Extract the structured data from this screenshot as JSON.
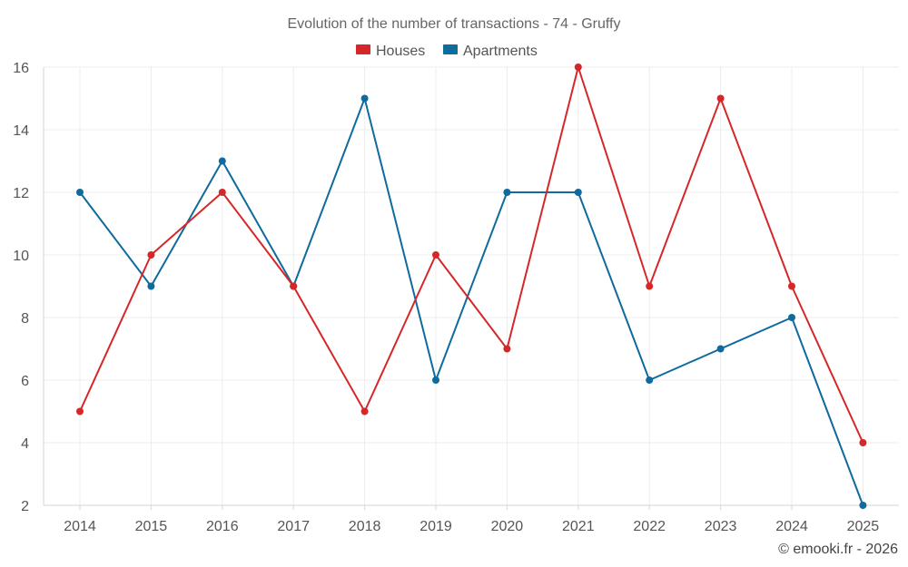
{
  "chart_data": {
    "type": "line",
    "title": "Evolution of the number of transactions - 74 - Gruffy",
    "categories": [
      "2014",
      "2015",
      "2016",
      "2017",
      "2018",
      "2019",
      "2020",
      "2021",
      "2022",
      "2023",
      "2024",
      "2025"
    ],
    "series": [
      {
        "name": "Houses",
        "color": "#d62728",
        "values": [
          5,
          10,
          12,
          9,
          5,
          10,
          7,
          16,
          9,
          15,
          9,
          4
        ]
      },
      {
        "name": "Apartments",
        "color": "#0f6a9e",
        "values": [
          12,
          9,
          13,
          9,
          15,
          6,
          12,
          12,
          6,
          7,
          8,
          2
        ]
      }
    ],
    "ylim": [
      2,
      16
    ],
    "yticks": [
      2,
      4,
      6,
      8,
      10,
      12,
      14,
      16
    ],
    "xlabel": "",
    "ylabel": "",
    "grid": true,
    "legend_position": "top-center"
  },
  "credit": "© emooki.fr - 2026"
}
